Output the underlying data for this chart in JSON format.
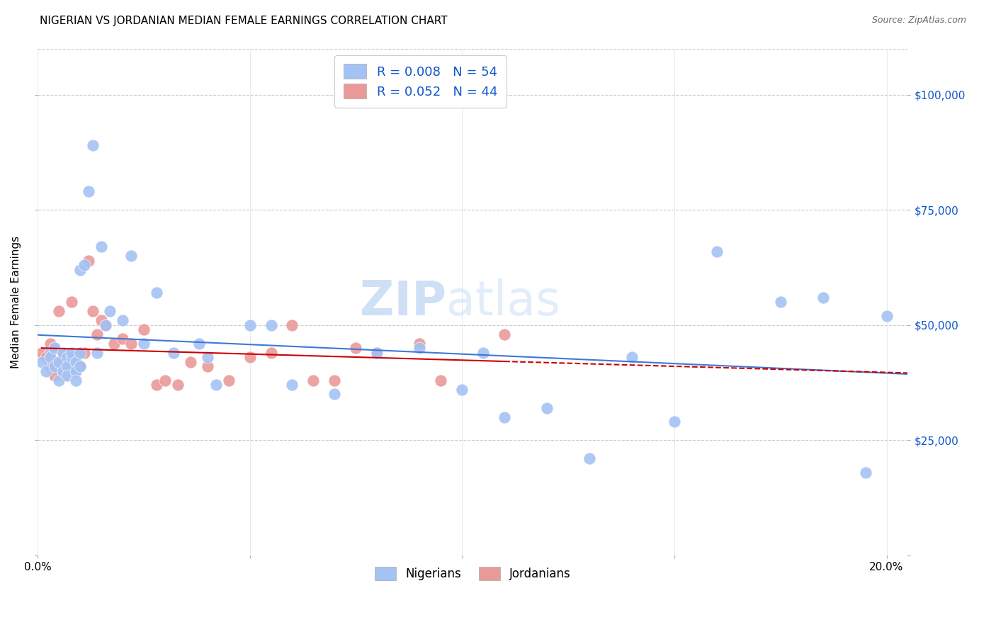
{
  "title": "NIGERIAN VS JORDANIAN MEDIAN FEMALE EARNINGS CORRELATION CHART",
  "source": "Source: ZipAtlas.com",
  "ylabel": "Median Female Earnings",
  "xlim": [
    0.0,
    0.205
  ],
  "ylim": [
    0,
    110000
  ],
  "yticks": [
    0,
    25000,
    50000,
    75000,
    100000
  ],
  "ytick_labels": [
    "",
    "$25,000",
    "$50,000",
    "$75,000",
    "$100,000"
  ],
  "xticks": [
    0.0,
    0.05,
    0.1,
    0.15,
    0.2
  ],
  "xtick_labels": [
    "0.0%",
    "",
    "",
    "",
    "20.0%"
  ],
  "legend_r1": "R = 0.008",
  "legend_n1": "N = 54",
  "legend_r2": "R = 0.052",
  "legend_n2": "N = 44",
  "nigerians_label": "Nigerians",
  "jordanians_label": "Jordanians",
  "blue_color": "#a4c2f4",
  "pink_color": "#ea9999",
  "blue_line_color": "#3c78d8",
  "pink_line_color": "#cc0000",
  "text_blue": "#1155cc",
  "background": "#ffffff",
  "grid_color": "#cccccc",
  "watermark_zip": "ZIP",
  "watermark_atlas": "atlas",
  "nigerians_x": [
    0.001,
    0.002,
    0.003,
    0.003,
    0.004,
    0.004,
    0.005,
    0.005,
    0.006,
    0.006,
    0.007,
    0.007,
    0.007,
    0.008,
    0.008,
    0.009,
    0.009,
    0.009,
    0.01,
    0.01,
    0.01,
    0.011,
    0.012,
    0.013,
    0.014,
    0.015,
    0.016,
    0.017,
    0.02,
    0.022,
    0.025,
    0.028,
    0.032,
    0.038,
    0.04,
    0.042,
    0.05,
    0.055,
    0.06,
    0.07,
    0.08,
    0.09,
    0.1,
    0.105,
    0.11,
    0.12,
    0.13,
    0.14,
    0.15,
    0.16,
    0.175,
    0.185,
    0.195,
    0.2
  ],
  "nigerians_y": [
    42000,
    40000,
    44000,
    43000,
    45000,
    41000,
    42000,
    38000,
    44000,
    40000,
    43000,
    41000,
    39000,
    43000,
    44000,
    42000,
    40000,
    38000,
    62000,
    44000,
    41000,
    63000,
    79000,
    89000,
    44000,
    67000,
    50000,
    53000,
    51000,
    65000,
    46000,
    57000,
    44000,
    46000,
    43000,
    37000,
    50000,
    50000,
    37000,
    35000,
    44000,
    45000,
    36000,
    44000,
    30000,
    32000,
    21000,
    43000,
    29000,
    66000,
    55000,
    56000,
    18000,
    52000
  ],
  "jordanians_x": [
    0.001,
    0.002,
    0.003,
    0.003,
    0.004,
    0.004,
    0.005,
    0.005,
    0.006,
    0.006,
    0.007,
    0.007,
    0.008,
    0.008,
    0.009,
    0.009,
    0.01,
    0.01,
    0.011,
    0.012,
    0.013,
    0.014,
    0.015,
    0.016,
    0.018,
    0.02,
    0.022,
    0.025,
    0.028,
    0.03,
    0.033,
    0.036,
    0.04,
    0.045,
    0.05,
    0.055,
    0.06,
    0.065,
    0.07,
    0.075,
    0.08,
    0.09,
    0.095,
    0.11
  ],
  "jordanians_y": [
    44000,
    43000,
    46000,
    41000,
    45000,
    39000,
    53000,
    42000,
    44000,
    39000,
    42000,
    40000,
    43000,
    55000,
    42000,
    40000,
    44000,
    41000,
    44000,
    64000,
    53000,
    48000,
    51000,
    50000,
    46000,
    47000,
    46000,
    49000,
    37000,
    38000,
    37000,
    42000,
    41000,
    38000,
    43000,
    44000,
    50000,
    38000,
    38000,
    45000,
    44000,
    46000,
    38000,
    48000
  ]
}
